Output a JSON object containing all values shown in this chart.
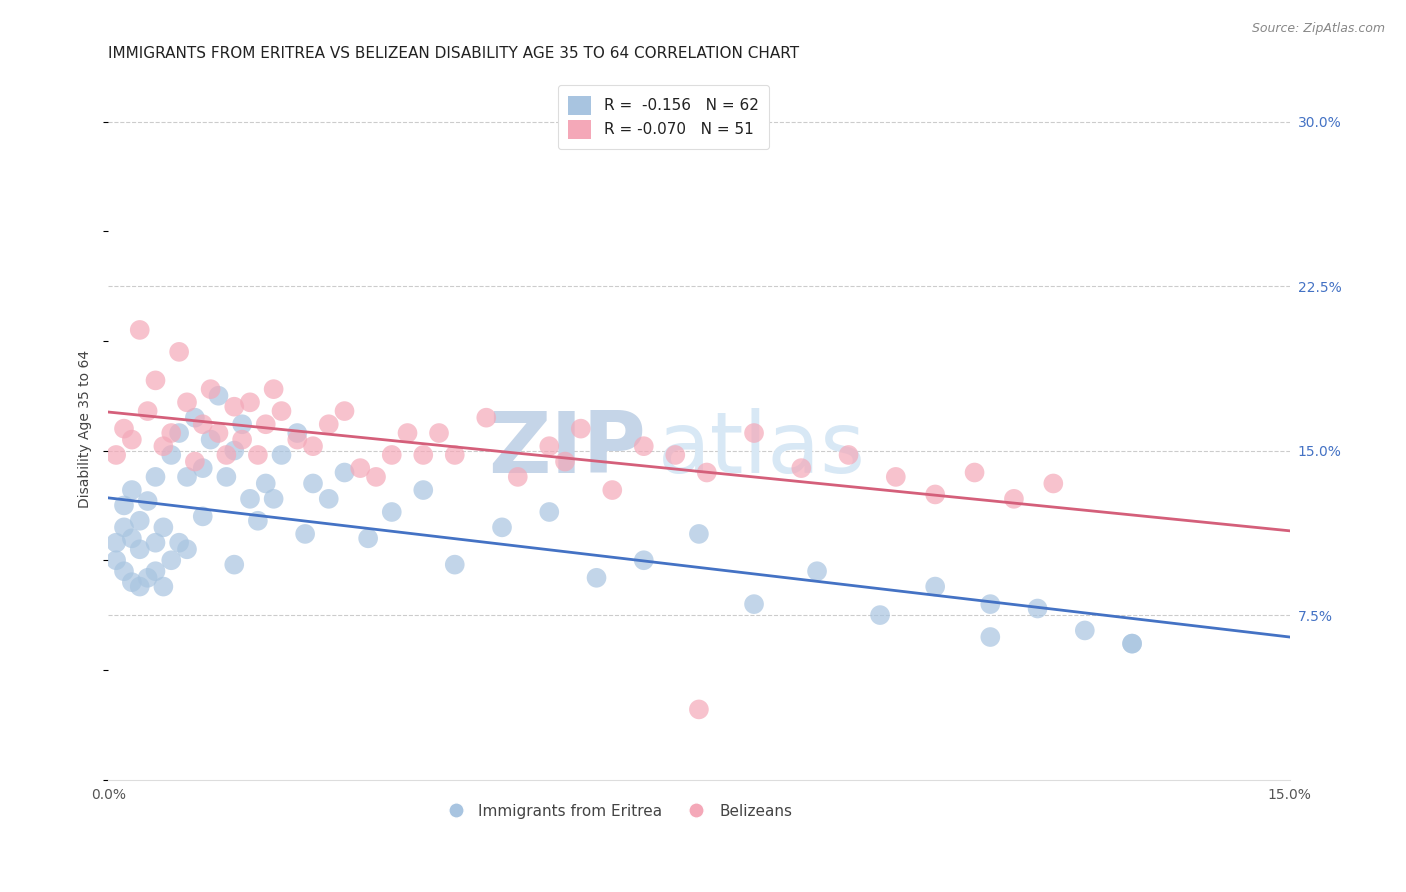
{
  "title": "IMMIGRANTS FROM ERITREA VS BELIZEAN DISABILITY AGE 35 TO 64 CORRELATION CHART",
  "source": "Source: ZipAtlas.com",
  "ylabel": "Disability Age 35 to 64",
  "xlim": [
    0.0,
    0.15
  ],
  "ylim": [
    0.0,
    0.32
  ],
  "yticks_right": [
    0.075,
    0.15,
    0.225,
    0.3
  ],
  "ytick_labels_right": [
    "7.5%",
    "15.0%",
    "22.5%",
    "30.0%"
  ],
  "grid_color": "#cccccc",
  "background_color": "#ffffff",
  "blue_scatter_color": "#a8c4e0",
  "pink_scatter_color": "#f4a8b8",
  "blue_line_color": "#4472c4",
  "pink_line_color": "#d45f7a",
  "r_blue": -0.156,
  "n_blue": 62,
  "r_pink": -0.07,
  "n_pink": 51,
  "legend_label_blue": "Immigrants from Eritrea",
  "legend_label_pink": "Belizeans",
  "watermark_zip": "ZIP",
  "watermark_atlas": "atlas",
  "watermark_zip_color": "#c8d8ec",
  "watermark_atlas_color": "#d0e0f0",
  "title_fontsize": 11,
  "axis_label_fontsize": 10,
  "tick_fontsize": 10,
  "legend_fontsize": 11
}
